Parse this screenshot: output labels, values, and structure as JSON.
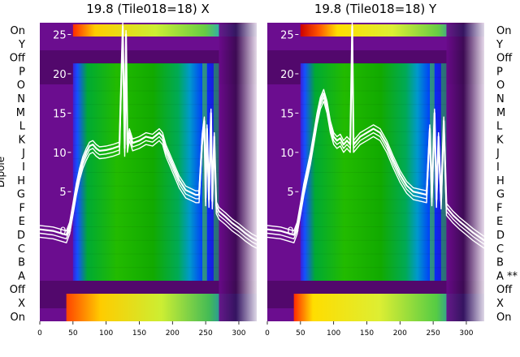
{
  "chart_data": [
    {
      "type": "heatmap",
      "title": "19.8 (Tile018=18) X",
      "ylabel": "Dipole",
      "row_labels": [
        "On",
        "Y",
        "Off",
        "P",
        "O",
        "N",
        "M",
        "L",
        "K",
        "J",
        "I",
        "H",
        "G",
        "F",
        "E",
        "D",
        "C",
        "B",
        "A",
        "Off",
        "X",
        "On"
      ],
      "row_label_side": "left",
      "x_ticks": [
        0,
        50,
        100,
        150,
        200,
        250,
        300
      ],
      "xlim": [
        0,
        327
      ],
      "y_ticks": [
        0,
        5,
        10,
        15,
        20,
        25
      ],
      "ylim": [
        -11.5,
        26.5
      ],
      "overlay_lines": [
        {
          "color": "#ffffff",
          "x": [
            0,
            20,
            40,
            45,
            50,
            55,
            60,
            65,
            70,
            75,
            80,
            85,
            90,
            100,
            110,
            120,
            125,
            128,
            130,
            132,
            135,
            140,
            150,
            160,
            170,
            180,
            185,
            190,
            200,
            210,
            220,
            230,
            235,
            240,
            245,
            248,
            250,
            252,
            255,
            258,
            260,
            263,
            266,
            270,
            280,
            290,
            300,
            310,
            320,
            327
          ],
          "y": [
            0.2,
            0.0,
            -0.5,
            0.6,
            3.0,
            5.5,
            7.5,
            9.0,
            10.0,
            10.8,
            11.0,
            10.5,
            10.2,
            10.3,
            10.5,
            10.8,
            26,
            10.5,
            25,
            11,
            12.5,
            11.2,
            11.5,
            12.0,
            11.8,
            12.5,
            12.0,
            10.5,
            8.5,
            6.5,
            5.2,
            4.8,
            4.6,
            4.6,
            12,
            14,
            4.2,
            13,
            4.0,
            15,
            3.8,
            12,
            3.2,
            2.5,
            1.8,
            1.0,
            0.4,
            -0.3,
            -0.9,
            -1.2
          ]
        }
      ]
    },
    {
      "type": "heatmap",
      "title": "19.8 (Tile018=18) Y",
      "row_labels": [
        "On",
        "Y",
        "Off",
        "P",
        "O",
        "N",
        "M",
        "L",
        "K",
        "J",
        "I",
        "H",
        "G",
        "F",
        "E",
        "D",
        "C",
        "B",
        "A **",
        "Off",
        "X",
        "On"
      ],
      "row_label_side": "right",
      "x_ticks": [
        0,
        50,
        100,
        150,
        200,
        250,
        300
      ],
      "xlim": [
        0,
        327
      ],
      "y_ticks": [
        0,
        5,
        10,
        15,
        20,
        25
      ],
      "ylim": [
        -11.5,
        26.5
      ],
      "overlay_lines": [
        {
          "color": "#ffffff",
          "x": [
            0,
            20,
            40,
            45,
            50,
            55,
            60,
            65,
            70,
            75,
            80,
            85,
            90,
            95,
            100,
            105,
            110,
            115,
            120,
            125,
            128,
            130,
            135,
            140,
            150,
            160,
            170,
            180,
            190,
            200,
            210,
            220,
            230,
            240,
            245,
            248,
            252,
            255,
            258,
            262,
            266,
            270,
            280,
            290,
            300,
            310,
            320,
            327
          ],
          "y": [
            0.2,
            0.0,
            -0.5,
            0.6,
            3.0,
            5.5,
            7.5,
            9.5,
            12.0,
            14.5,
            16.5,
            17.5,
            16.0,
            13.5,
            12.0,
            11.5,
            11.8,
            11.0,
            11.5,
            11.0,
            26,
            11.0,
            11.5,
            12.0,
            12.5,
            13.0,
            12.5,
            11.0,
            9.0,
            7.2,
            5.8,
            5.0,
            4.8,
            4.6,
            13,
            4.2,
            15,
            4.0,
            12,
            3.8,
            14,
            3.0,
            2.0,
            1.2,
            0.5,
            -0.2,
            -0.8,
            -1.2
          ]
        }
      ]
    }
  ]
}
